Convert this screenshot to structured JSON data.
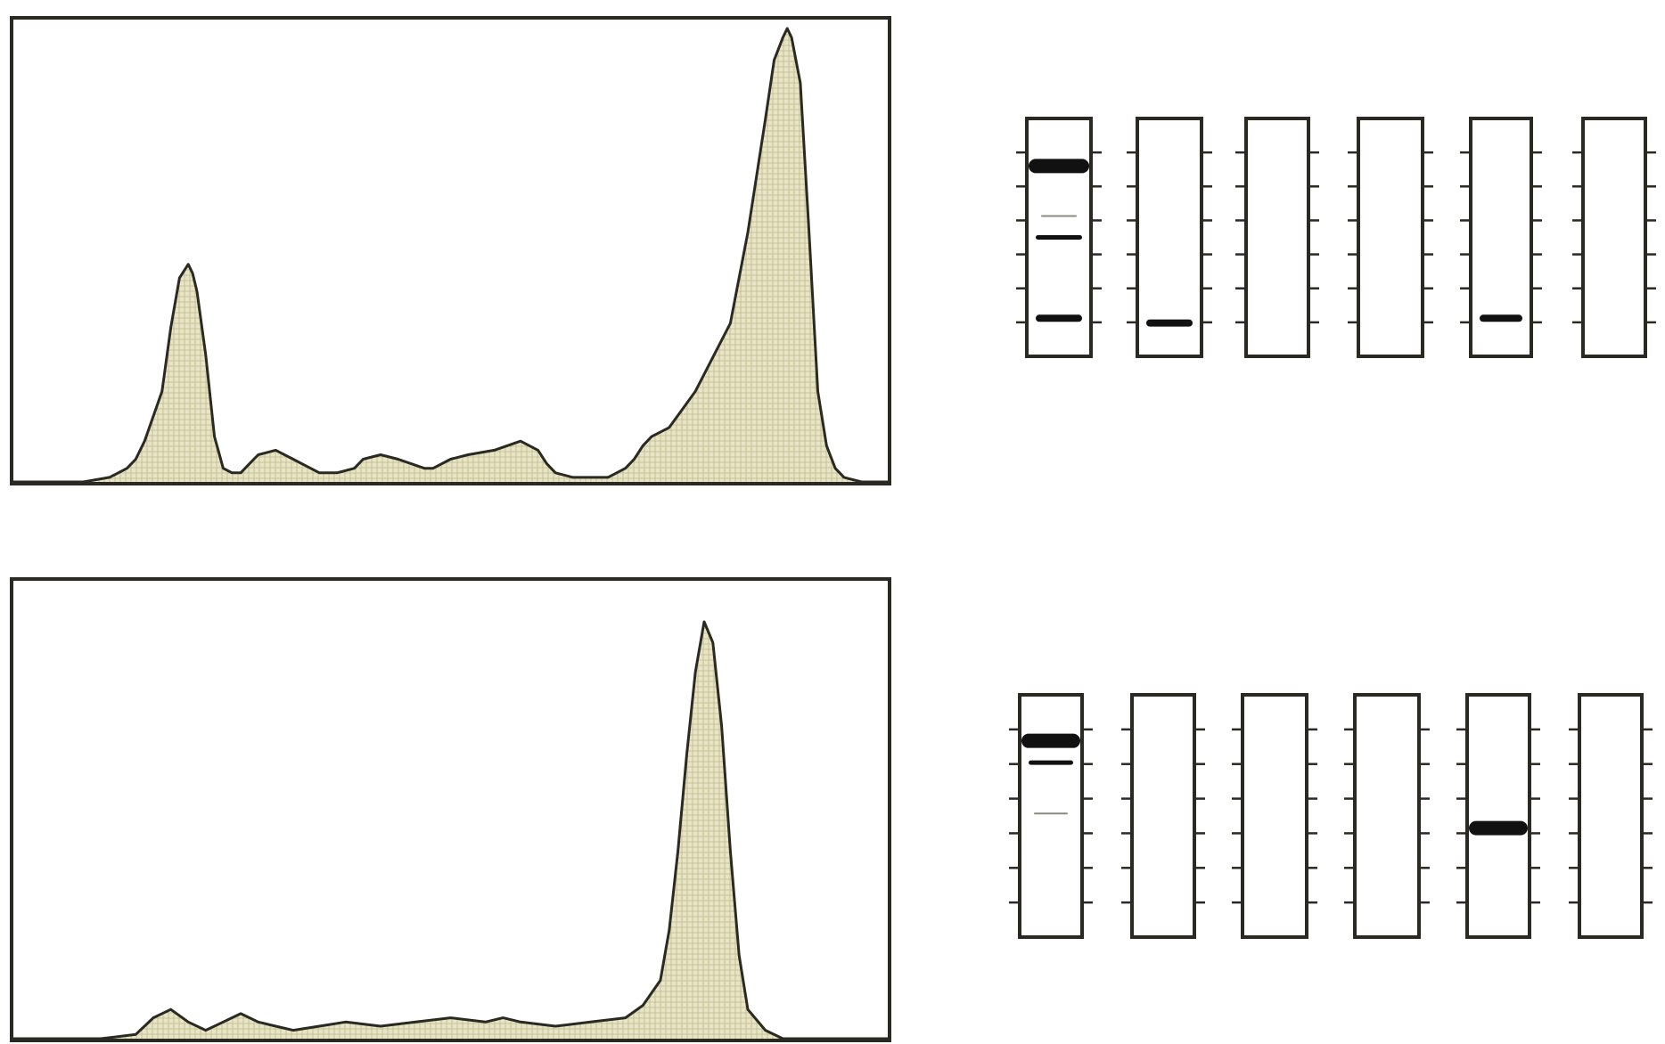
{
  "colors": {
    "ink": "#2a2a22",
    "fill_light": "#e8e5c6",
    "fill_dark": "#bdb88a",
    "band": "#111111",
    "faint_band": "#8a8a80",
    "background": "#ffffff"
  },
  "chart_data": [
    {
      "type": "area",
      "series": [
        {
          "x": [
            0,
            0.02,
            0.05,
            0.08,
            0.11,
            0.13,
            0.14,
            0.15,
            0.17,
            0.18,
            0.19,
            0.2,
            0.205,
            0.21,
            0.22,
            0.23,
            0.24,
            0.25,
            0.26,
            0.27,
            0.28,
            0.3,
            0.32,
            0.34,
            0.35,
            0.36,
            0.37,
            0.39,
            0.4,
            0.42,
            0.44,
            0.47,
            0.48,
            0.5,
            0.52,
            0.55,
            0.58,
            0.59,
            0.6,
            0.61,
            0.62,
            0.64,
            0.66,
            0.68,
            0.7,
            0.71,
            0.72,
            0.73,
            0.75,
            0.78,
            0.82,
            0.84,
            0.86,
            0.87,
            0.88,
            0.885,
            0.89,
            0.9,
            0.91,
            0.92,
            0.93,
            0.94,
            0.95,
            0.97,
            1.0
          ],
          "values": [
            0,
            0,
            0,
            0,
            0.01,
            0.03,
            0.05,
            0.09,
            0.2,
            0.34,
            0.45,
            0.48,
            0.46,
            0.42,
            0.28,
            0.1,
            0.03,
            0.02,
            0.02,
            0.04,
            0.06,
            0.07,
            0.05,
            0.03,
            0.02,
            0.02,
            0.02,
            0.03,
            0.05,
            0.06,
            0.05,
            0.03,
            0.03,
            0.05,
            0.06,
            0.07,
            0.09,
            0.08,
            0.07,
            0.04,
            0.02,
            0.01,
            0.01,
            0.01,
            0.03,
            0.05,
            0.08,
            0.1,
            0.12,
            0.2,
            0.35,
            0.55,
            0.8,
            0.93,
            0.98,
            1.0,
            0.98,
            0.88,
            0.55,
            0.2,
            0.08,
            0.03,
            0.01,
            0,
            0
          ]
        }
      ]
    },
    {
      "type": "area",
      "series": [
        {
          "x": [
            0,
            0.1,
            0.14,
            0.16,
            0.18,
            0.2,
            0.22,
            0.24,
            0.26,
            0.28,
            0.3,
            0.32,
            0.35,
            0.38,
            0.42,
            0.46,
            0.5,
            0.54,
            0.56,
            0.58,
            0.62,
            0.66,
            0.7,
            0.72,
            0.74,
            0.75,
            0.76,
            0.77,
            0.78,
            0.79,
            0.8,
            0.81,
            0.82,
            0.83,
            0.84,
            0.86,
            0.88,
            1.0
          ],
          "values": [
            0,
            0,
            0.01,
            0.05,
            0.07,
            0.04,
            0.02,
            0.04,
            0.06,
            0.04,
            0.03,
            0.02,
            0.03,
            0.04,
            0.03,
            0.04,
            0.05,
            0.04,
            0.05,
            0.04,
            0.03,
            0.04,
            0.05,
            0.08,
            0.14,
            0.26,
            0.45,
            0.68,
            0.88,
            1.0,
            0.95,
            0.75,
            0.45,
            0.2,
            0.07,
            0.02,
            0,
            0
          ]
        }
      ]
    }
  ],
  "gel_strips": [
    {
      "lanes": [
        {
          "bands": [
            {
              "pos": 0.2,
              "strength": "heavy"
            },
            {
              "pos": 0.41,
              "strength": "faint"
            },
            {
              "pos": 0.5,
              "strength": "thin"
            },
            {
              "pos": 0.84,
              "strength": "medium"
            }
          ]
        },
        {
          "bands": [
            {
              "pos": 0.86,
              "strength": "medium"
            }
          ]
        },
        {
          "bands": []
        },
        {
          "bands": []
        },
        {
          "bands": [
            {
              "pos": 0.84,
              "strength": "medium"
            }
          ]
        },
        {
          "bands": []
        }
      ]
    },
    {
      "lanes": [
        {
          "bands": [
            {
              "pos": 0.19,
              "strength": "heavy"
            },
            {
              "pos": 0.28,
              "strength": "thin"
            },
            {
              "pos": 0.49,
              "strength": "faint"
            }
          ]
        },
        {
          "bands": []
        },
        {
          "bands": []
        },
        {
          "bands": []
        },
        {
          "bands": [
            {
              "pos": 0.55,
              "strength": "heavy"
            }
          ]
        },
        {
          "bands": []
        }
      ]
    }
  ]
}
